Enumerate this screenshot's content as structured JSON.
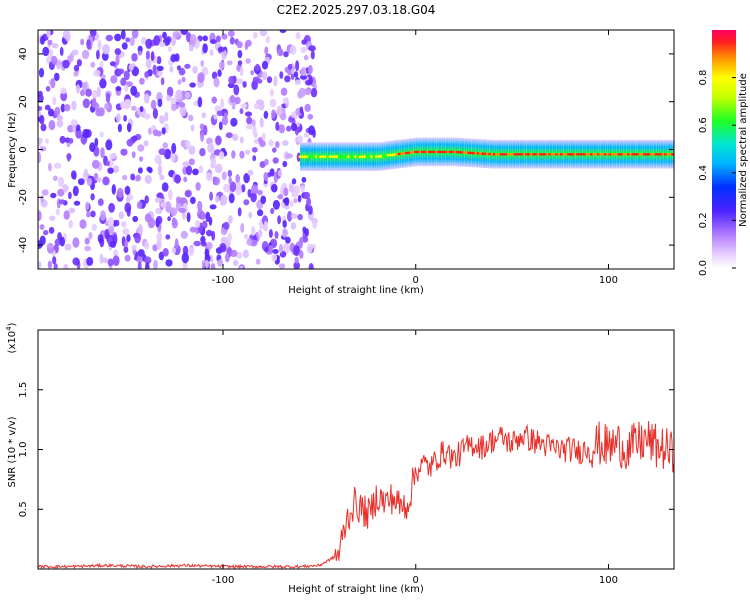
{
  "title": "C2E2.2025.297.03.18.G04",
  "colors": {
    "snr_line": "#e8302b",
    "frame": "#000000"
  },
  "chart_data": [
    {
      "type": "heatmap",
      "name": "spectrogram",
      "xlabel": "Height of straight line (km)",
      "ylabel": "Frequency (Hz)",
      "xlim": [
        -196,
        134
      ],
      "ylim": [
        -50,
        50
      ],
      "xticks": [
        -100,
        0,
        100
      ],
      "yticks": [
        -40,
        -20,
        0,
        20,
        40
      ],
      "xtick_labels": [
        "-100",
        "0",
        "100"
      ],
      "ytick_labels": [
        "-40",
        "-20",
        "0",
        "20",
        "40"
      ],
      "colorbar": {
        "label": "Normalized spectral amplitude",
        "range": [
          0.0,
          1.0
        ],
        "ticks": [
          0.0,
          0.2,
          0.4,
          0.6,
          0.8
        ],
        "tick_labels": [
          "0.0",
          "0.2",
          "0.4",
          "0.6",
          "0.8"
        ]
      },
      "features": {
        "noise_region_x": [
          -196,
          -52
        ],
        "signal_band_x": [
          -60,
          134
        ],
        "signal_band_center_hz": [
          [
            -60,
            -3
          ],
          [
            -40,
            -3
          ],
          [
            -20,
            -3
          ],
          [
            0,
            -1
          ],
          [
            20,
            -1
          ],
          [
            40,
            -2
          ],
          [
            60,
            -2
          ],
          [
            80,
            -2
          ],
          [
            100,
            -2
          ],
          [
            120,
            -2
          ],
          [
            134,
            -2
          ]
        ]
      }
    },
    {
      "type": "line",
      "name": "snr",
      "xlabel": "Height of straight line (km)",
      "ylabel": "SNR (10 * v/v)",
      "multiplier_label": "(x10",
      "multiplier_exp": "4",
      "xlim": [
        -196,
        134
      ],
      "ylim": [
        0,
        2.0
      ],
      "xticks": [
        -100,
        0,
        100
      ],
      "yticks": [
        0.5,
        1.0,
        1.5
      ],
      "xtick_labels": [
        "-100",
        "0",
        "100"
      ],
      "ytick_labels": [
        "0.5",
        "1.0",
        "1.5"
      ],
      "series": [
        {
          "name": "SNR",
          "x": [
            -196,
            -180,
            -160,
            -140,
            -120,
            -100,
            -80,
            -60,
            -50,
            -40,
            -36,
            -32,
            -28,
            -24,
            -20,
            -16,
            -12,
            -8,
            -4,
            0,
            4,
            8,
            12,
            16,
            20,
            25,
            30,
            35,
            40,
            45,
            50,
            55,
            60,
            65,
            70,
            75,
            80,
            85,
            90,
            95,
            100,
            105,
            110,
            115,
            120,
            125,
            130,
            134
          ],
          "values": [
            0.02,
            0.02,
            0.03,
            0.02,
            0.03,
            0.02,
            0.02,
            0.02,
            0.03,
            0.12,
            0.4,
            0.55,
            0.5,
            0.45,
            0.62,
            0.55,
            0.6,
            0.52,
            0.55,
            0.82,
            0.88,
            0.85,
            0.95,
            0.98,
            0.92,
            1.0,
            1.05,
            1.02,
            1.08,
            1.1,
            1.05,
            1.12,
            1.08,
            1.05,
            1.02,
            1.0,
            1.0,
            0.98,
            1.02,
            1.05,
            1.02,
            1.05,
            1.0,
            1.05,
            1.08,
            1.02,
            1.0,
            0.95
          ]
        }
      ]
    }
  ]
}
